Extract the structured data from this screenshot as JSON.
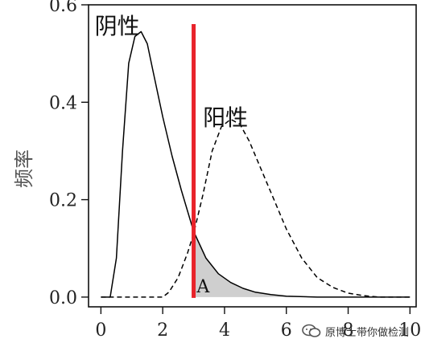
{
  "chart_data": {
    "type": "line",
    "title": "",
    "xlabel": "",
    "ylabel": "频率",
    "xlim": [
      -0.4,
      10.2
    ],
    "ylim": [
      -0.02,
      0.6
    ],
    "x_ticks": [
      "0",
      "2",
      "4",
      "6",
      "8",
      "10"
    ],
    "x_tick_values": [
      0,
      2,
      4,
      6,
      8,
      10
    ],
    "y_ticks": [
      "0.0",
      "0.2",
      "0.4",
      "0.6"
    ],
    "y_tick_values": [
      0.0,
      0.2,
      0.4,
      0.6
    ],
    "series": [
      {
        "name": "阴性",
        "style": "solid",
        "color": "#000000",
        "x": [
          0.0,
          0.3,
          0.5,
          0.7,
          0.9,
          1.1,
          1.3,
          1.5,
          1.7,
          2.0,
          2.3,
          2.6,
          3.0,
          3.4,
          3.8,
          4.2,
          4.6,
          5.0,
          5.5,
          6.0,
          7.0,
          8.0,
          9.0,
          10.0
        ],
        "y": [
          0.0,
          0.0,
          0.08,
          0.3,
          0.48,
          0.535,
          0.545,
          0.52,
          0.46,
          0.37,
          0.29,
          0.22,
          0.135,
          0.08,
          0.048,
          0.03,
          0.018,
          0.01,
          0.005,
          0.002,
          0.0,
          0.0,
          0.0,
          0.0
        ]
      },
      {
        "name": "阳性",
        "style": "dashed",
        "color": "#000000",
        "x": [
          0.0,
          1.0,
          2.0,
          2.2,
          2.5,
          2.8,
          3.0,
          3.3,
          3.6,
          3.9,
          4.2,
          4.5,
          4.8,
          5.2,
          5.6,
          6.0,
          6.5,
          7.0,
          7.5,
          8.0,
          8.5,
          9.0,
          10.0
        ],
        "y": [
          0.0,
          0.0,
          0.0,
          0.01,
          0.04,
          0.09,
          0.13,
          0.21,
          0.3,
          0.35,
          0.365,
          0.355,
          0.32,
          0.26,
          0.2,
          0.14,
          0.08,
          0.04,
          0.02,
          0.008,
          0.003,
          0.0,
          0.0
        ]
      }
    ],
    "threshold": {
      "x": 3.0,
      "color": "#e8232a"
    },
    "shaded_region": {
      "label": "A",
      "x_from": 3.0,
      "under_series": "阴性",
      "color": "#cfcfcf"
    },
    "grid": false,
    "legend": "none"
  },
  "watermark": {
    "text": "原博士带你做检测"
  }
}
